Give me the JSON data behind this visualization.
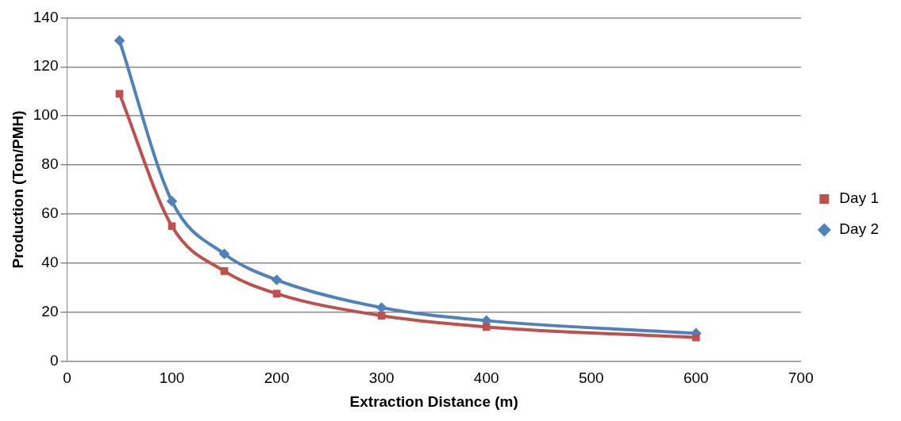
{
  "chart_data": {
    "type": "line",
    "xlabel": "Extraction Distance (m)",
    "ylabel": "Production (Ton/PMH)",
    "xlim": [
      0,
      700
    ],
    "xticks": [
      0,
      100,
      200,
      300,
      400,
      500,
      600,
      700
    ],
    "ylim": [
      0,
      140
    ],
    "yticks": [
      0,
      20,
      40,
      60,
      80,
      100,
      120,
      140
    ],
    "x": [
      50,
      100,
      150,
      200,
      300,
      400,
      600
    ],
    "series": [
      {
        "name": "Day 1",
        "color": "#c0504d",
        "marker": "square",
        "values": [
          109,
          55,
          36.7,
          27.5,
          18.5,
          13.9,
          9.6
        ]
      },
      {
        "name": "Day 2",
        "color": "#4f81bd",
        "marker": "diamond",
        "values": [
          130.7,
          65.2,
          43.7,
          33.1,
          21.8,
          16.5,
          11.3
        ]
      }
    ],
    "grid": "y",
    "legend": "right",
    "line_style": "solid"
  }
}
